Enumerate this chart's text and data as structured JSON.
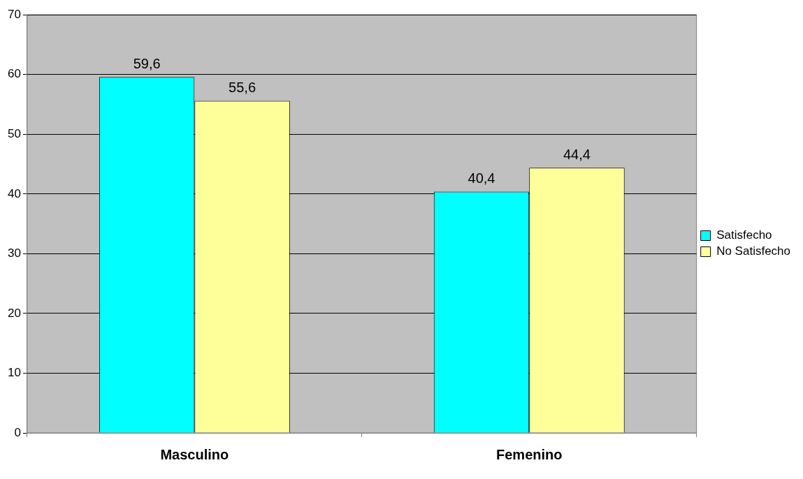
{
  "chart_data": {
    "type": "bar",
    "categories": [
      "Masculino",
      "Femenino"
    ],
    "series": [
      {
        "name": "Satisfecho",
        "color": "#00ffff",
        "values": [
          59.6,
          40.4
        ],
        "value_labels": [
          "59,6",
          "40,4"
        ]
      },
      {
        "name": "No Satisfecho",
        "color": "#ffff99",
        "values": [
          55.6,
          44.4
        ],
        "value_labels": [
          "55,6",
          "44,4"
        ]
      }
    ],
    "ylim": [
      0,
      70
    ],
    "yticks": [
      0,
      10,
      20,
      30,
      40,
      50,
      60,
      70
    ],
    "grid": "y",
    "legend": "right"
  }
}
